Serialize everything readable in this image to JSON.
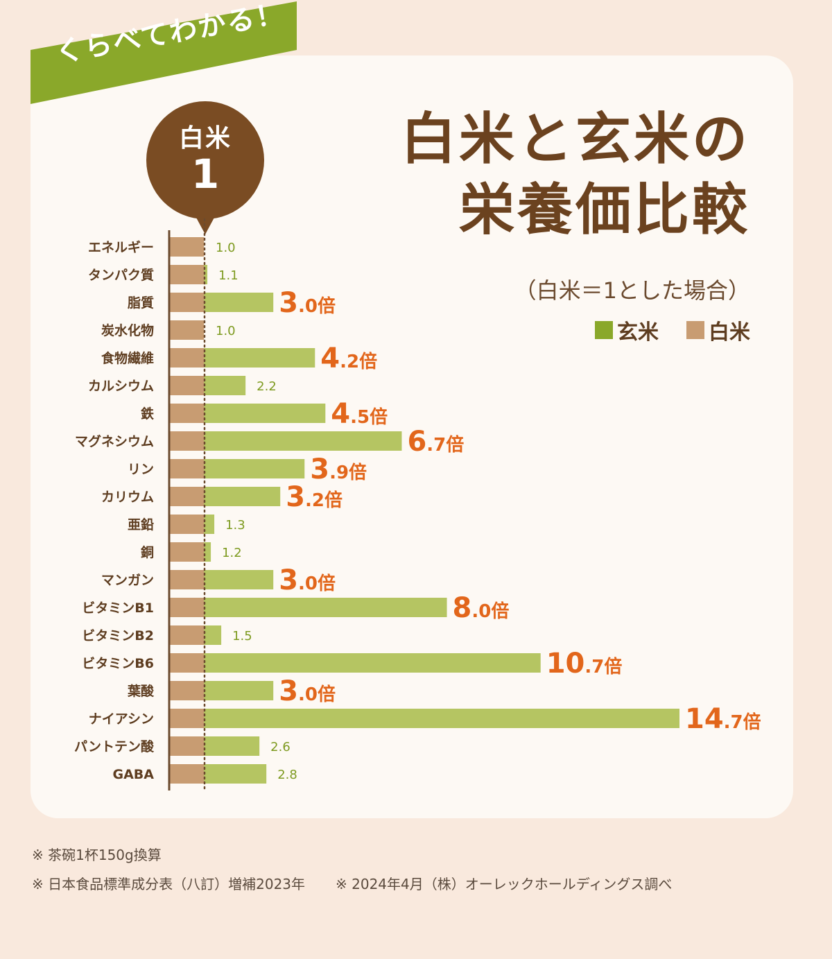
{
  "ribbon_text": "くらべてわかる！",
  "title_line1": "白米と玄米の",
  "title_line2": "栄養価比較",
  "subtitle": "（白米＝1とした場合）",
  "badge": {
    "label": "白米",
    "value": "1"
  },
  "legend": [
    {
      "label": "玄米",
      "color": "#8aa82a"
    },
    {
      "label": "白米",
      "color": "#c89c72"
    }
  ],
  "footnotes": [
    "※ 茶碗1杯150g換算",
    "※ 日本食品標準成分表（八訂）増補2023年",
    "※ 2024年4月（株）オーレックホールディングス調べ"
  ],
  "colors": {
    "brown_rice_bar": "#b5c562",
    "white_rice_bar": "#c89c72",
    "highlight_label": "#e2661b",
    "small_label": "#7d9a1f",
    "category_text": "#5e3d20",
    "axis": "#6b4a2e"
  },
  "chart_data": {
    "type": "bar",
    "orientation": "horizontal",
    "categories": [
      "エネルギー",
      "タンパク質",
      "脂質",
      "炭水化物",
      "食物繊維",
      "カルシウム",
      "鉄",
      "マグネシウム",
      "リン",
      "カリウム",
      "亜鉛",
      "銅",
      "マンガン",
      "ビタミンB1",
      "ビタミンB2",
      "ビタミンB6",
      "葉酸",
      "ナイアシン",
      "パントテン酸",
      "GABA"
    ],
    "series": [
      {
        "name": "白米",
        "values": [
          1,
          1,
          1,
          1,
          1,
          1,
          1,
          1,
          1,
          1,
          1,
          1,
          1,
          1,
          1,
          1,
          1,
          1,
          1,
          1
        ]
      },
      {
        "name": "玄米",
        "values": [
          1.0,
          1.1,
          3.0,
          1.0,
          4.2,
          2.2,
          4.5,
          6.7,
          3.9,
          3.2,
          1.3,
          1.2,
          3.0,
          8.0,
          1.5,
          10.7,
          3.0,
          14.7,
          2.6,
          2.8
        ]
      }
    ],
    "data_labels": [
      "1.0",
      "1.1",
      "3.0倍",
      "1.0",
      "4.2倍",
      "2.2",
      "4.5倍",
      "6.7倍",
      "3.9倍",
      "3.2倍",
      "1.3",
      "1.2",
      "3.0倍",
      "8.0倍",
      "1.5",
      "10.7倍",
      "3.0倍",
      "14.7倍",
      "2.6",
      "2.8"
    ],
    "reference_line": 1,
    "xlim": [
      0,
      14.7
    ],
    "grid": false
  }
}
